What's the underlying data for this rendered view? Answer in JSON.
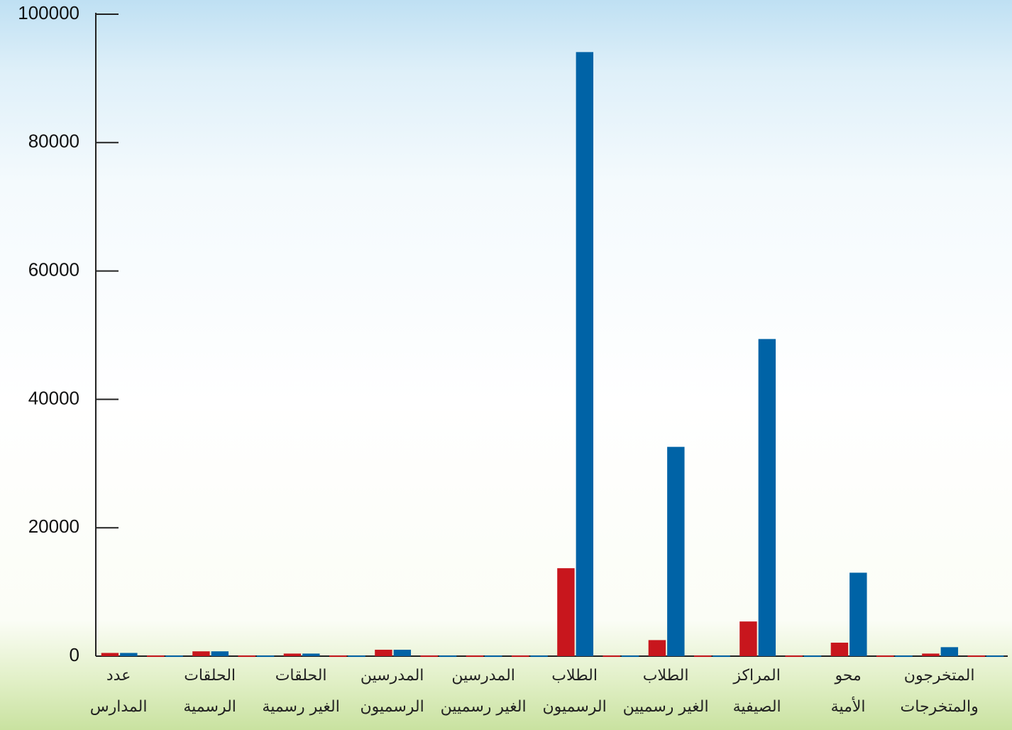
{
  "chart_data": {
    "type": "bar",
    "categories": [
      "عدد\nالمدارس",
      null,
      "الحلقات\nالرسمية",
      null,
      "الحلقات\nالغير رسمية",
      null,
      "المدرسين\nالرسميون",
      null,
      "المدرسين\nالغير رسميين",
      null,
      "الطلاب\nالرسميون",
      null,
      "الطلاب\nالغير رسميين",
      null,
      "المراكز\nالصيفية",
      null,
      "محو\nالأمية",
      null,
      "المتخرجون\nوالمتخرجات",
      null
    ],
    "series": [
      {
        "color": "#c8161d",
        "values": [
          500,
          100,
          750,
          100,
          400,
          100,
          1000,
          100,
          100,
          100,
          13700,
          100,
          2500,
          100,
          5400,
          100,
          2100,
          100,
          400,
          100
        ]
      },
      {
        "color": "#0063a6",
        "values": [
          500,
          100,
          750,
          100,
          400,
          100,
          1000,
          100,
          100,
          100,
          94100,
          100,
          32600,
          100,
          49400,
          100,
          13000,
          100,
          1400,
          100
        ]
      }
    ],
    "ylim": [
      0,
      100000
    ],
    "yticks": [
      0,
      20000,
      40000,
      60000,
      80000,
      100000
    ]
  }
}
